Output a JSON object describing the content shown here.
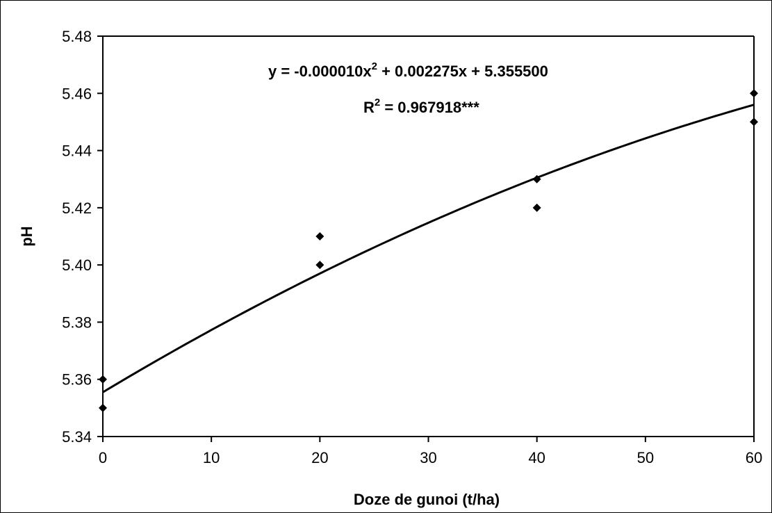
{
  "chart_data": {
    "type": "scatter",
    "xlabel": "Doze de gunoi (t/ha)",
    "ylabel": "pH",
    "xlim": [
      0,
      60
    ],
    "ylim": [
      5.34,
      5.48
    ],
    "x_ticks": [
      "0",
      "10",
      "20",
      "30",
      "40",
      "50",
      "60"
    ],
    "y_ticks": [
      "5.34",
      "5.36",
      "5.38",
      "5.40",
      "5.42",
      "5.44",
      "5.46",
      "5.48"
    ],
    "grid": false,
    "series": [
      {
        "marker": "diamond",
        "points": [
          {
            "x": 0,
            "y": 5.36
          },
          {
            "x": 0,
            "y": 5.35
          },
          {
            "x": 20,
            "y": 5.41
          },
          {
            "x": 20,
            "y": 5.4
          },
          {
            "x": 40,
            "y": 5.43
          },
          {
            "x": 40,
            "y": 5.42
          },
          {
            "x": 60,
            "y": 5.46
          },
          {
            "x": 60,
            "y": 5.45
          }
        ]
      }
    ],
    "trendline": {
      "type": "polynomial",
      "coefficients": {
        "a": -1e-05,
        "b": 0.002275,
        "c": 5.3555
      },
      "x_range": [
        0,
        60
      ]
    },
    "annotations": {
      "equation": "y = -0.000010x",
      "equation_exp": "2",
      "equation_rest": " + 0.002275x + 5.355500",
      "r2_prefix": "R",
      "r2_exp": "2",
      "r2_rest": " = 0.967918***"
    },
    "colors": {
      "marker": "#000000",
      "line": "#000000"
    }
  }
}
